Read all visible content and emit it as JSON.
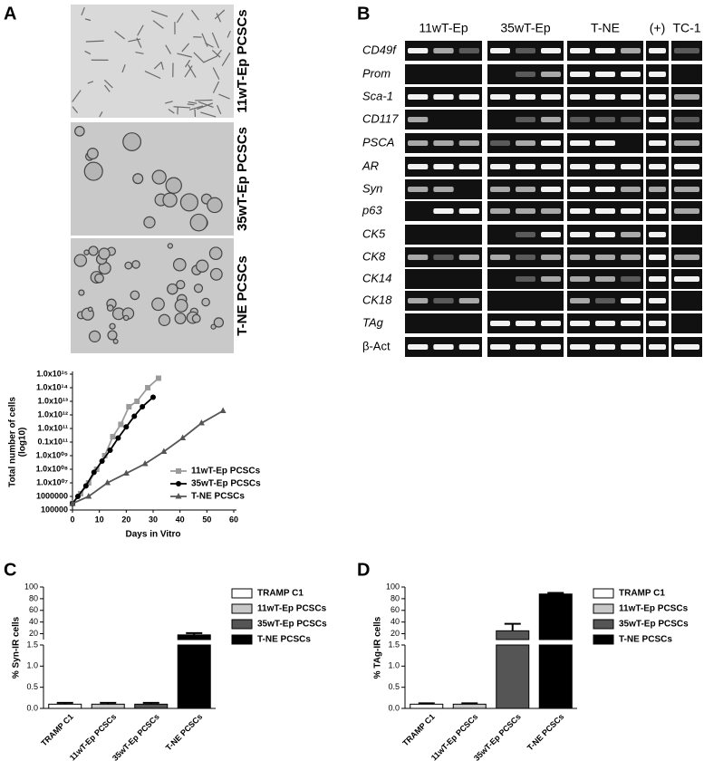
{
  "panel_labels": [
    "A",
    "B",
    "C",
    "D"
  ],
  "micrographs": {
    "labels": [
      "11wT-Ep PCSCs",
      "35wT-Ep PCSCs",
      "T-NE PCSCs"
    ]
  },
  "gel": {
    "columns": [
      "11wT-Ep",
      "35wT-Ep",
      "T-NE",
      "(+)",
      "TC-1"
    ],
    "rows": [
      "CD49f",
      "Prom",
      "Sca-1",
      "CD117",
      "PSCA",
      "AR",
      "Syn",
      "p63",
      "CK5",
      "CK8",
      "CK14",
      "CK18",
      "TAg",
      "β-Act"
    ]
  },
  "chart_data": [
    {
      "type": "line",
      "xlabel": "Days in Vitro",
      "ylabel": [
        "Total number of cells",
        "(log10)"
      ],
      "log_y": true,
      "xlim": [
        0,
        60
      ],
      "xticks": [
        0,
        10,
        20,
        30,
        40,
        50,
        60
      ],
      "ylim": [
        100000,
        1000000000000000.0
      ],
      "yticks": [
        100000,
        1000000,
        {
          "value": 10000000.0,
          "label": "1.0x10⁰⁷"
        },
        {
          "value": 100000000.0,
          "label": "1.0x10⁰⁸"
        },
        {
          "value": 1000000000.0,
          "label": "1.0x10⁰⁹"
        },
        {
          "value": 10000000000.0,
          "label": "0.1x10¹¹"
        },
        {
          "value": 100000000000.0,
          "label": "1.0x10¹¹"
        },
        {
          "value": 1000000000000.0,
          "label": "1.0x10¹²"
        },
        {
          "value": 10000000000000.0,
          "label": "1.0x10¹³"
        },
        {
          "value": 100000000000000.0,
          "label": "1.0x10¹⁴"
        },
        {
          "value": 1000000000000000.0,
          "label": "1.0x10¹⁵"
        }
      ],
      "legend": "lower right",
      "series": [
        {
          "name": "11wT-Ep PCSCs",
          "color": "#9a9a9a",
          "marker": "square",
          "x": [
            0,
            3,
            6,
            9,
            12,
            15,
            18,
            21,
            24,
            28,
            32
          ],
          "values": [
            300000.0,
            1600000.0,
            10000000.0,
            100000000.0,
            1000000000.0,
            25000000000.0,
            200000000000.0,
            4000000000000.0,
            10000000000000.0,
            100000000000000.0,
            500000000000000.0
          ]
        },
        {
          "name": "35wT-Ep PCSCs",
          "color": "#000000",
          "marker": "circle",
          "x": [
            0,
            2,
            5,
            8,
            11,
            14,
            17,
            20,
            23,
            26,
            30
          ],
          "values": [
            300000.0,
            1000000.0,
            6000000.0,
            60000000.0,
            400000000.0,
            2500000000.0,
            20000000000.0,
            130000000000.0,
            800000000000.0,
            4000000000000.0,
            20000000000000.0
          ]
        },
        {
          "name": "T-NE PCSCs",
          "color": "#555555",
          "marker": "triangle",
          "x": [
            0,
            6,
            13,
            20,
            27,
            34,
            41,
            48,
            56
          ],
          "values": [
            300000.0,
            1000000.0,
            10000000.0,
            50000000.0,
            250000000.0,
            2000000000.0,
            20000000000.0,
            250000000000.0,
            2000000000000.0
          ]
        }
      ]
    },
    {
      "type": "bar",
      "ylabel": "% Syn-IR cells",
      "categories": [
        "TRAMP C1",
        "11wT-Ep PCSCs",
        "35wT-Ep PCSCs",
        "T-NE PCSCs"
      ],
      "values": [
        0.1,
        0.1,
        0.1,
        18
      ],
      "errors": [
        0.03,
        0.03,
        0.03,
        3
      ],
      "colors": [
        "#ffffff",
        "#c8c8c8",
        "#555555",
        "#000000"
      ],
      "ylim": [
        0,
        100
      ],
      "y_segments": [
        {
          "lim": [
            0,
            1.5
          ],
          "ticks": [
            {
              "value": 0,
              "label": "0.0"
            },
            0.5,
            {
              "value": 1,
              "label": "1.0"
            },
            1.5
          ]
        },
        {
          "lim": [
            10,
            100
          ],
          "ticks": [
            20,
            40,
            60,
            80,
            100
          ]
        }
      ],
      "legend": "right"
    },
    {
      "type": "bar",
      "ylabel": "% TAg-IR cells",
      "categories": [
        "TRAMP C1",
        "11wT-Ep PCSCs",
        "35wT-Ep PCSCs",
        "T-NE PCSCs"
      ],
      "values": [
        0.1,
        0.1,
        25,
        88
      ],
      "errors": [
        0.02,
        0.02,
        12,
        2
      ],
      "colors": [
        "#ffffff",
        "#c8c8c8",
        "#555555",
        "#000000"
      ],
      "ylim": [
        0,
        100
      ],
      "y_segments": [
        {
          "lim": [
            0,
            1.5
          ],
          "ticks": [
            {
              "value": 0,
              "label": "0.0"
            },
            0.5,
            {
              "value": 1,
              "label": "1.0"
            },
            1.5
          ]
        },
        {
          "lim": [
            10,
            100
          ],
          "ticks": [
            20,
            40,
            60,
            80,
            100
          ]
        }
      ],
      "legend": "right"
    }
  ]
}
